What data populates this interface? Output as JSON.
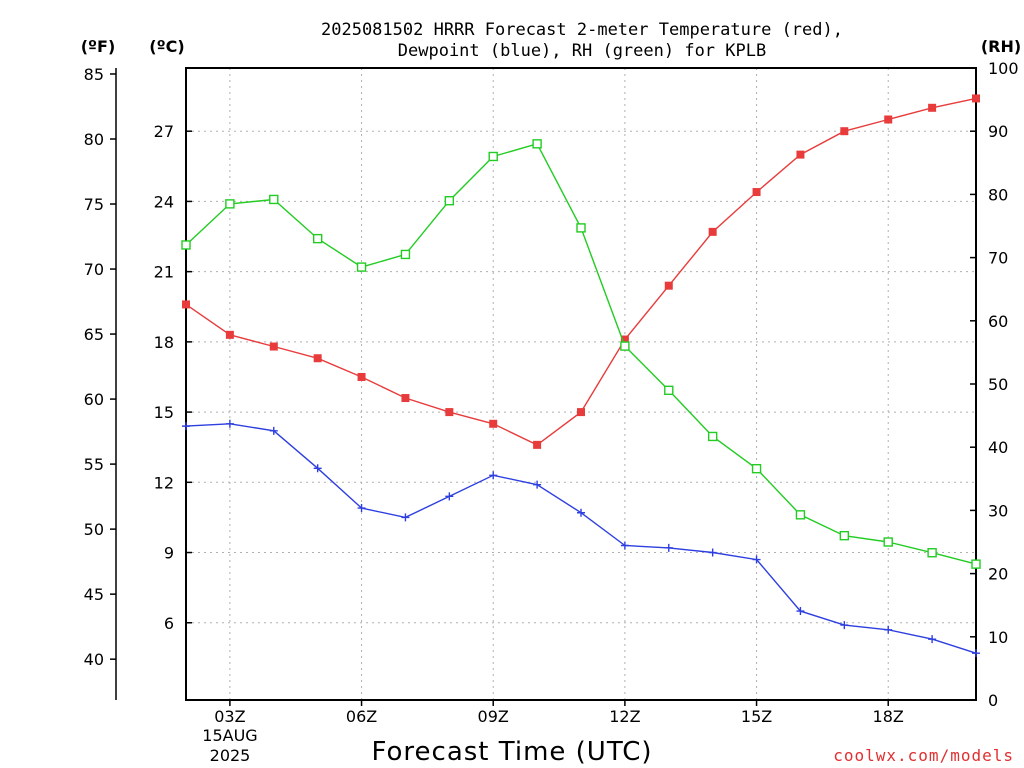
{
  "chart_data": {
    "type": "line",
    "title_lines": [
      "2025081502 HRRR Forecast 2-meter Temperature (red),",
      "Dewpoint (blue), RH (green) for KPLB"
    ],
    "xlabel": "Forecast Time (UTC)",
    "x_hours": [
      2,
      3,
      4,
      5,
      6,
      7,
      8,
      9,
      10,
      11,
      12,
      13,
      14,
      15,
      16,
      17,
      18,
      19,
      20
    ],
    "xlim": [
      2,
      20
    ],
    "x_ticks": [
      {
        "hour": 3,
        "label": "03Z",
        "date_lines": [
          "15AUG",
          "2025"
        ]
      },
      {
        "hour": 6,
        "label": "06Z"
      },
      {
        "hour": 9,
        "label": "09Z"
      },
      {
        "hour": 12,
        "label": "12Z"
      },
      {
        "hour": 15,
        "label": "15Z"
      },
      {
        "hour": 18,
        "label": "18Z"
      }
    ],
    "celsius_axis": {
      "unit_label": "(ºC)",
      "ylim": [
        2.7,
        29.7
      ],
      "ticks": [
        6,
        9,
        12,
        15,
        18,
        21,
        24,
        27
      ]
    },
    "fahrenheit_axis": {
      "unit_label": "(ºF)",
      "ticks": [
        40,
        45,
        50,
        55,
        60,
        65,
        70,
        75,
        80,
        85
      ]
    },
    "rh_axis": {
      "unit_label": "(RH)",
      "ylim": [
        0,
        100
      ],
      "ticks": [
        0,
        10,
        20,
        30,
        40,
        50,
        60,
        70,
        80,
        90,
        100
      ]
    },
    "grid": true,
    "series": [
      {
        "name": "Temperature",
        "axis": "celsius",
        "color": "#e83c3c",
        "marker": "filled-square",
        "values": [
          19.6,
          18.3,
          17.8,
          17.3,
          16.5,
          15.6,
          15.0,
          14.5,
          13.6,
          15.0,
          18.1,
          20.4,
          22.7,
          24.4,
          26.0,
          27.0,
          27.5,
          28.0,
          28.4
        ]
      },
      {
        "name": "Dewpoint",
        "axis": "celsius",
        "color": "#2e3fe0",
        "marker": "plus",
        "values": [
          14.4,
          14.5,
          14.2,
          12.6,
          10.9,
          10.5,
          11.4,
          12.3,
          11.9,
          10.7,
          9.3,
          9.2,
          9.0,
          8.7,
          6.5,
          5.9,
          5.7,
          5.3,
          4.7
        ]
      },
      {
        "name": "RH",
        "axis": "rh",
        "color": "#22cc22",
        "marker": "hollow-square",
        "values": [
          72,
          78.5,
          79.2,
          73,
          68.5,
          70.5,
          79,
          86,
          88,
          74.7,
          56,
          49,
          41.7,
          36.6,
          29.3,
          26,
          25,
          23.3,
          21.5
        ]
      }
    ]
  },
  "credit": "coolwx.com/models"
}
